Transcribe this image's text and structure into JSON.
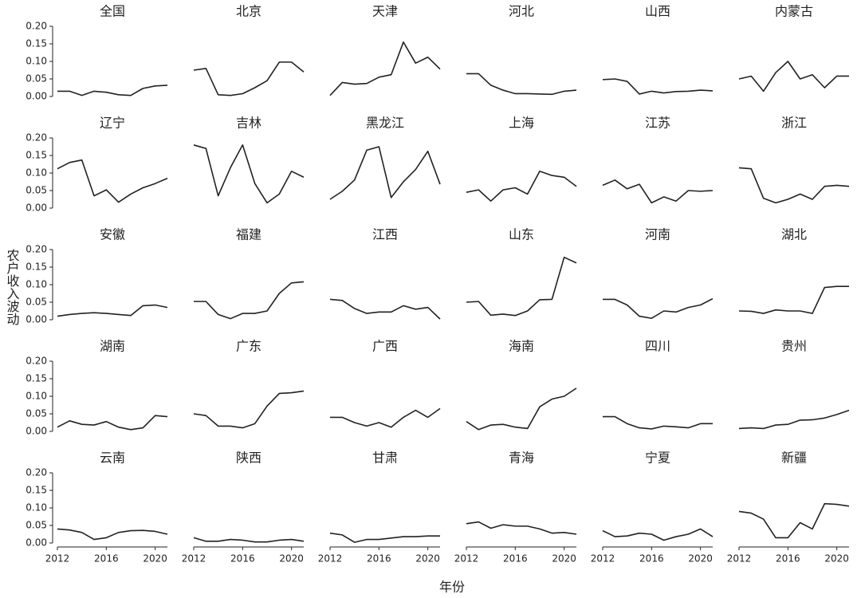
{
  "y_label": "农户收入波动",
  "x_label": "年份",
  "chart_data": [
    {
      "type": "line",
      "title": "全国",
      "x": [
        2012,
        2013,
        2014,
        2015,
        2016,
        2017,
        2018,
        2019,
        2020,
        2021
      ],
      "values": [
        0.015,
        0.015,
        0.003,
        0.015,
        0.012,
        0.005,
        0.003,
        0.023,
        0.03,
        0.032
      ],
      "color": "#222222",
      "xlim": [
        2012,
        2021
      ],
      "ylim": [
        0,
        0.2
      ],
      "yticks": [
        {
          "value": 0,
          "label": "0.00"
        },
        {
          "value": 0.05,
          "label": "0.05"
        },
        {
          "value": 0.1,
          "label": "0.10"
        },
        {
          "value": 0.15,
          "label": "0.15"
        },
        {
          "value": 0.2,
          "label": "0.20"
        }
      ]
    },
    {
      "type": "line",
      "title": "北京",
      "x": [
        2012,
        2013,
        2014,
        2015,
        2016,
        2017,
        2018,
        2019,
        2020,
        2021
      ],
      "values": [
        0.075,
        0.08,
        0.005,
        0.003,
        0.008,
        0.025,
        0.045,
        0.098,
        0.098,
        0.07
      ],
      "color": "#222222",
      "xlim": [
        2012,
        2021
      ],
      "ylim": [
        0,
        0.2
      ]
    },
    {
      "type": "line",
      "title": "天津",
      "x": [
        2012,
        2013,
        2014,
        2015,
        2016,
        2017,
        2018,
        2019,
        2020,
        2021
      ],
      "values": [
        0.003,
        0.04,
        0.035,
        0.037,
        0.055,
        0.062,
        0.155,
        0.095,
        0.112,
        0.078
      ],
      "color": "#222222",
      "xlim": [
        2012,
        2021
      ],
      "ylim": [
        0,
        0.2
      ]
    },
    {
      "type": "line",
      "title": "河北",
      "x": [
        2012,
        2013,
        2014,
        2015,
        2016,
        2017,
        2018,
        2019,
        2020,
        2021
      ],
      "values": [
        0.065,
        0.065,
        0.032,
        0.018,
        0.008,
        0.008,
        0.007,
        0.006,
        0.015,
        0.018
      ],
      "color": "#222222",
      "xlim": [
        2012,
        2021
      ],
      "ylim": [
        0,
        0.2
      ]
    },
    {
      "type": "line",
      "title": "山西",
      "x": [
        2012,
        2013,
        2014,
        2015,
        2016,
        2017,
        2018,
        2019,
        2020,
        2021
      ],
      "values": [
        0.048,
        0.05,
        0.043,
        0.007,
        0.015,
        0.01,
        0.014,
        0.015,
        0.018,
        0.016
      ],
      "color": "#222222",
      "xlim": [
        2012,
        2021
      ],
      "ylim": [
        0,
        0.2
      ]
    },
    {
      "type": "line",
      "title": "内蒙古",
      "x": [
        2012,
        2013,
        2014,
        2015,
        2016,
        2017,
        2018,
        2019,
        2020,
        2021
      ],
      "values": [
        0.05,
        0.058,
        0.015,
        0.068,
        0.1,
        0.05,
        0.062,
        0.025,
        0.058,
        0.058
      ],
      "color": "#222222",
      "xlim": [
        2012,
        2021
      ],
      "ylim": [
        0,
        0.2
      ]
    },
    {
      "type": "line",
      "title": "辽宁",
      "x": [
        2012,
        2013,
        2014,
        2015,
        2016,
        2017,
        2018,
        2019,
        2020,
        2021
      ],
      "values": [
        0.112,
        0.13,
        0.137,
        0.035,
        0.052,
        0.017,
        0.04,
        0.058,
        0.07,
        0.085
      ],
      "color": "#222222",
      "xlim": [
        2012,
        2021
      ],
      "ylim": [
        0,
        0.2
      ],
      "yticks": [
        {
          "value": 0,
          "label": "0.00"
        },
        {
          "value": 0.05,
          "label": "0.05"
        },
        {
          "value": 0.1,
          "label": "0.10"
        },
        {
          "value": 0.15,
          "label": "0.15"
        },
        {
          "value": 0.2,
          "label": "0.20"
        }
      ]
    },
    {
      "type": "line",
      "title": "吉林",
      "x": [
        2012,
        2013,
        2014,
        2015,
        2016,
        2017,
        2018,
        2019,
        2020,
        2021
      ],
      "values": [
        0.18,
        0.17,
        0.035,
        0.115,
        0.18,
        0.07,
        0.015,
        0.04,
        0.105,
        0.088
      ],
      "color": "#222222",
      "xlim": [
        2012,
        2021
      ],
      "ylim": [
        0,
        0.2
      ]
    },
    {
      "type": "line",
      "title": "黑龙江",
      "x": [
        2012,
        2013,
        2014,
        2015,
        2016,
        2017,
        2018,
        2019,
        2020,
        2021
      ],
      "values": [
        0.025,
        0.048,
        0.08,
        0.165,
        0.175,
        0.03,
        0.075,
        0.11,
        0.162,
        0.068
      ],
      "color": "#222222",
      "xlim": [
        2012,
        2021
      ],
      "ylim": [
        0,
        0.2
      ]
    },
    {
      "type": "line",
      "title": "上海",
      "x": [
        2012,
        2013,
        2014,
        2015,
        2016,
        2017,
        2018,
        2019,
        2020,
        2021
      ],
      "values": [
        0.045,
        0.052,
        0.02,
        0.052,
        0.058,
        0.04,
        0.105,
        0.093,
        0.088,
        0.062
      ],
      "color": "#222222",
      "xlim": [
        2012,
        2021
      ],
      "ylim": [
        0,
        0.2
      ]
    },
    {
      "type": "line",
      "title": "江苏",
      "x": [
        2012,
        2013,
        2014,
        2015,
        2016,
        2017,
        2018,
        2019,
        2020,
        2021
      ],
      "values": [
        0.065,
        0.08,
        0.055,
        0.068,
        0.015,
        0.032,
        0.02,
        0.05,
        0.048,
        0.05
      ],
      "color": "#222222",
      "xlim": [
        2012,
        2021
      ],
      "ylim": [
        0,
        0.2
      ]
    },
    {
      "type": "line",
      "title": "浙江",
      "x": [
        2012,
        2013,
        2014,
        2015,
        2016,
        2017,
        2018,
        2019,
        2020,
        2021
      ],
      "values": [
        0.115,
        0.112,
        0.028,
        0.015,
        0.025,
        0.04,
        0.025,
        0.062,
        0.065,
        0.062
      ],
      "color": "#222222",
      "xlim": [
        2012,
        2021
      ],
      "ylim": [
        0,
        0.2
      ]
    },
    {
      "type": "line",
      "title": "安徽",
      "x": [
        2012,
        2013,
        2014,
        2015,
        2016,
        2017,
        2018,
        2019,
        2020,
        2021
      ],
      "values": [
        0.01,
        0.015,
        0.018,
        0.02,
        0.018,
        0.015,
        0.012,
        0.04,
        0.042,
        0.035
      ],
      "color": "#222222",
      "xlim": [
        2012,
        2021
      ],
      "ylim": [
        0,
        0.2
      ],
      "yticks": [
        {
          "value": 0,
          "label": "0.00"
        },
        {
          "value": 0.05,
          "label": "0.05"
        },
        {
          "value": 0.1,
          "label": "0.10"
        },
        {
          "value": 0.15,
          "label": "0.15"
        },
        {
          "value": 0.2,
          "label": "0.20"
        }
      ]
    },
    {
      "type": "line",
      "title": "福建",
      "x": [
        2012,
        2013,
        2014,
        2015,
        2016,
        2017,
        2018,
        2019,
        2020,
        2021
      ],
      "values": [
        0.052,
        0.052,
        0.015,
        0.003,
        0.018,
        0.018,
        0.025,
        0.075,
        0.105,
        0.108
      ],
      "color": "#222222",
      "xlim": [
        2012,
        2021
      ],
      "ylim": [
        0,
        0.2
      ]
    },
    {
      "type": "line",
      "title": "江西",
      "x": [
        2012,
        2013,
        2014,
        2015,
        2016,
        2017,
        2018,
        2019,
        2020,
        2021
      ],
      "values": [
        0.058,
        0.055,
        0.032,
        0.018,
        0.022,
        0.022,
        0.04,
        0.03,
        0.035,
        0.002
      ],
      "color": "#222222",
      "xlim": [
        2012,
        2021
      ],
      "ylim": [
        0,
        0.2
      ]
    },
    {
      "type": "line",
      "title": "山东",
      "x": [
        2012,
        2013,
        2014,
        2015,
        2016,
        2017,
        2018,
        2019,
        2020,
        2021
      ],
      "values": [
        0.05,
        0.052,
        0.013,
        0.016,
        0.012,
        0.025,
        0.057,
        0.058,
        0.178,
        0.162
      ],
      "color": "#222222",
      "xlim": [
        2012,
        2021
      ],
      "ylim": [
        0,
        0.2
      ]
    },
    {
      "type": "line",
      "title": "河南",
      "x": [
        2012,
        2013,
        2014,
        2015,
        2016,
        2017,
        2018,
        2019,
        2020,
        2021
      ],
      "values": [
        0.058,
        0.058,
        0.042,
        0.01,
        0.004,
        0.025,
        0.022,
        0.035,
        0.042,
        0.06
      ],
      "color": "#222222",
      "xlim": [
        2012,
        2021
      ],
      "ylim": [
        0,
        0.2
      ]
    },
    {
      "type": "line",
      "title": "湖北",
      "x": [
        2012,
        2013,
        2014,
        2015,
        2016,
        2017,
        2018,
        2019,
        2020,
        2021
      ],
      "values": [
        0.025,
        0.024,
        0.018,
        0.028,
        0.025,
        0.025,
        0.018,
        0.092,
        0.095,
        0.095
      ],
      "color": "#222222",
      "xlim": [
        2012,
        2021
      ],
      "ylim": [
        0,
        0.2
      ]
    },
    {
      "type": "line",
      "title": "湖南",
      "x": [
        2012,
        2013,
        2014,
        2015,
        2016,
        2017,
        2018,
        2019,
        2020,
        2021
      ],
      "values": [
        0.012,
        0.03,
        0.02,
        0.018,
        0.028,
        0.012,
        0.005,
        0.01,
        0.045,
        0.042
      ],
      "color": "#222222",
      "xlim": [
        2012,
        2021
      ],
      "ylim": [
        0,
        0.2
      ],
      "yticks": [
        {
          "value": 0,
          "label": "0.00"
        },
        {
          "value": 0.05,
          "label": "0.05"
        },
        {
          "value": 0.1,
          "label": "0.10"
        },
        {
          "value": 0.15,
          "label": "0.15"
        },
        {
          "value": 0.2,
          "label": "0.20"
        }
      ]
    },
    {
      "type": "line",
      "title": "广东",
      "x": [
        2012,
        2013,
        2014,
        2015,
        2016,
        2017,
        2018,
        2019,
        2020,
        2021
      ],
      "values": [
        0.05,
        0.045,
        0.015,
        0.015,
        0.01,
        0.022,
        0.072,
        0.108,
        0.11,
        0.115
      ],
      "color": "#222222",
      "xlim": [
        2012,
        2021
      ],
      "ylim": [
        0,
        0.2
      ]
    },
    {
      "type": "line",
      "title": "广西",
      "x": [
        2012,
        2013,
        2014,
        2015,
        2016,
        2017,
        2018,
        2019,
        2020,
        2021
      ],
      "values": [
        0.04,
        0.04,
        0.025,
        0.015,
        0.025,
        0.012,
        0.04,
        0.06,
        0.04,
        0.065
      ],
      "color": "#222222",
      "xlim": [
        2012,
        2021
      ],
      "ylim": [
        0,
        0.2
      ]
    },
    {
      "type": "line",
      "title": "海南",
      "x": [
        2012,
        2013,
        2014,
        2015,
        2016,
        2017,
        2018,
        2019,
        2020,
        2021
      ],
      "values": [
        0.028,
        0.005,
        0.018,
        0.02,
        0.012,
        0.008,
        0.07,
        0.092,
        0.1,
        0.123
      ],
      "color": "#222222",
      "xlim": [
        2012,
        2021
      ],
      "ylim": [
        0,
        0.2
      ]
    },
    {
      "type": "line",
      "title": "四川",
      "x": [
        2012,
        2013,
        2014,
        2015,
        2016,
        2017,
        2018,
        2019,
        2020,
        2021
      ],
      "values": [
        0.042,
        0.042,
        0.022,
        0.01,
        0.007,
        0.015,
        0.013,
        0.01,
        0.022,
        0.022
      ],
      "color": "#222222",
      "xlim": [
        2012,
        2021
      ],
      "ylim": [
        0,
        0.2
      ]
    },
    {
      "type": "line",
      "title": "贵州",
      "x": [
        2012,
        2013,
        2014,
        2015,
        2016,
        2017,
        2018,
        2019,
        2020,
        2021
      ],
      "values": [
        0.008,
        0.01,
        0.008,
        0.018,
        0.02,
        0.032,
        0.033,
        0.038,
        0.048,
        0.06
      ],
      "color": "#222222",
      "xlim": [
        2012,
        2021
      ],
      "ylim": [
        0,
        0.2
      ]
    },
    {
      "type": "line",
      "title": "云南",
      "x": [
        2012,
        2013,
        2014,
        2015,
        2016,
        2017,
        2018,
        2019,
        2020,
        2021
      ],
      "values": [
        0.04,
        0.037,
        0.03,
        0.01,
        0.015,
        0.03,
        0.035,
        0.036,
        0.033,
        0.025
      ],
      "color": "#222222",
      "xlim": [
        2012,
        2021
      ],
      "ylim": [
        0,
        0.2
      ],
      "yticks": [
        {
          "value": 0,
          "label": "0.00"
        },
        {
          "value": 0.05,
          "label": "0.05"
        },
        {
          "value": 0.1,
          "label": "0.10"
        },
        {
          "value": 0.15,
          "label": "0.15"
        },
        {
          "value": 0.2,
          "label": "0.20"
        }
      ],
      "xticks": [
        2012,
        2016,
        2020
      ]
    },
    {
      "type": "line",
      "title": "陕西",
      "x": [
        2012,
        2013,
        2014,
        2015,
        2016,
        2017,
        2018,
        2019,
        2020,
        2021
      ],
      "values": [
        0.015,
        0.005,
        0.005,
        0.01,
        0.008,
        0.003,
        0.003,
        0.008,
        0.01,
        0.005
      ],
      "color": "#222222",
      "xlim": [
        2012,
        2021
      ],
      "ylim": [
        0,
        0.2
      ],
      "xticks": [
        2012,
        2016,
        2020
      ]
    },
    {
      "type": "line",
      "title": "甘肃",
      "x": [
        2012,
        2013,
        2014,
        2015,
        2016,
        2017,
        2018,
        2019,
        2020,
        2021
      ],
      "values": [
        0.028,
        0.023,
        0.002,
        0.01,
        0.01,
        0.014,
        0.018,
        0.018,
        0.02,
        0.02
      ],
      "color": "#222222",
      "xlim": [
        2012,
        2021
      ],
      "ylim": [
        0,
        0.2
      ],
      "xticks": [
        2012,
        2016,
        2020
      ]
    },
    {
      "type": "line",
      "title": "青海",
      "x": [
        2012,
        2013,
        2014,
        2015,
        2016,
        2017,
        2018,
        2019,
        2020,
        2021
      ],
      "values": [
        0.055,
        0.06,
        0.042,
        0.052,
        0.048,
        0.048,
        0.04,
        0.028,
        0.03,
        0.025
      ],
      "color": "#222222",
      "xlim": [
        2012,
        2021
      ],
      "ylim": [
        0,
        0.2
      ],
      "xticks": [
        2012,
        2016,
        2020
      ]
    },
    {
      "type": "line",
      "title": "宁夏",
      "x": [
        2012,
        2013,
        2014,
        2015,
        2016,
        2017,
        2018,
        2019,
        2020,
        2021
      ],
      "values": [
        0.035,
        0.018,
        0.02,
        0.028,
        0.025,
        0.008,
        0.018,
        0.025,
        0.04,
        0.018
      ],
      "color": "#222222",
      "xlim": [
        2012,
        2021
      ],
      "ylim": [
        0,
        0.2
      ],
      "xticks": [
        2012,
        2016,
        2020
      ]
    },
    {
      "type": "line",
      "title": "新疆",
      "x": [
        2012,
        2013,
        2014,
        2015,
        2016,
        2017,
        2018,
        2019,
        2020,
        2021
      ],
      "values": [
        0.09,
        0.085,
        0.068,
        0.015,
        0.015,
        0.058,
        0.04,
        0.112,
        0.11,
        0.105
      ],
      "color": "#222222",
      "xlim": [
        2012,
        2021
      ],
      "ylim": [
        0,
        0.2
      ],
      "xticks": [
        2012,
        2016,
        2020
      ]
    }
  ]
}
